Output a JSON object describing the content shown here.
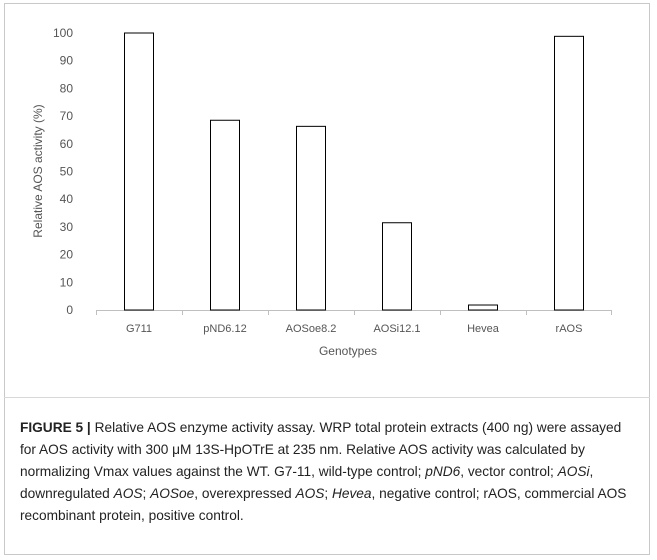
{
  "chart_data": {
    "type": "bar",
    "categories": [
      "G711",
      "pND6.12",
      "AOSoe8.2",
      "AOSi12.1",
      "Hevea",
      "rAOS"
    ],
    "values": [
      100,
      68.5,
      66.3,
      31.5,
      1.8,
      98.8
    ],
    "xlabel": "Genotypes",
    "ylabel": "Relative AOS activity (%)",
    "ylim": [
      0,
      100
    ],
    "yticks": [
      "0",
      "10",
      "20",
      "30",
      "40",
      "50",
      "60",
      "70",
      "80",
      "90",
      "100"
    ],
    "grid": false,
    "bar_fill": "#ffffff",
    "bar_stroke": "#000000"
  },
  "caption": {
    "label": "FIGURE 5 |",
    "segments": [
      {
        "t": " Relative AOS enzyme activity assay. WRP total protein extracts (400 ng) were assayed for AOS activity with 300 ",
        "s": "n"
      },
      {
        "t": "μ",
        "s": "n"
      },
      {
        "t": "M 13S-HpOTrE at 235 nm. Relative AOS activity was calculated by normalizing Vmax values against the WT. G7-11, wild-type control; ",
        "s": "n"
      },
      {
        "t": "pND6",
        "s": "i"
      },
      {
        "t": ", vector control; ",
        "s": "n"
      },
      {
        "t": "AOSi",
        "s": "i"
      },
      {
        "t": ", downregulated ",
        "s": "n"
      },
      {
        "t": "AOS",
        "s": "i"
      },
      {
        "t": "; ",
        "s": "n"
      },
      {
        "t": "AOSoe",
        "s": "i"
      },
      {
        "t": ", overexpressed ",
        "s": "n"
      },
      {
        "t": "AOS",
        "s": "i"
      },
      {
        "t": "; ",
        "s": "n"
      },
      {
        "t": "Hevea",
        "s": "i"
      },
      {
        "t": ", negative control; rAOS, commercial AOS recombinant protein, positive control.",
        "s": "n"
      }
    ]
  }
}
